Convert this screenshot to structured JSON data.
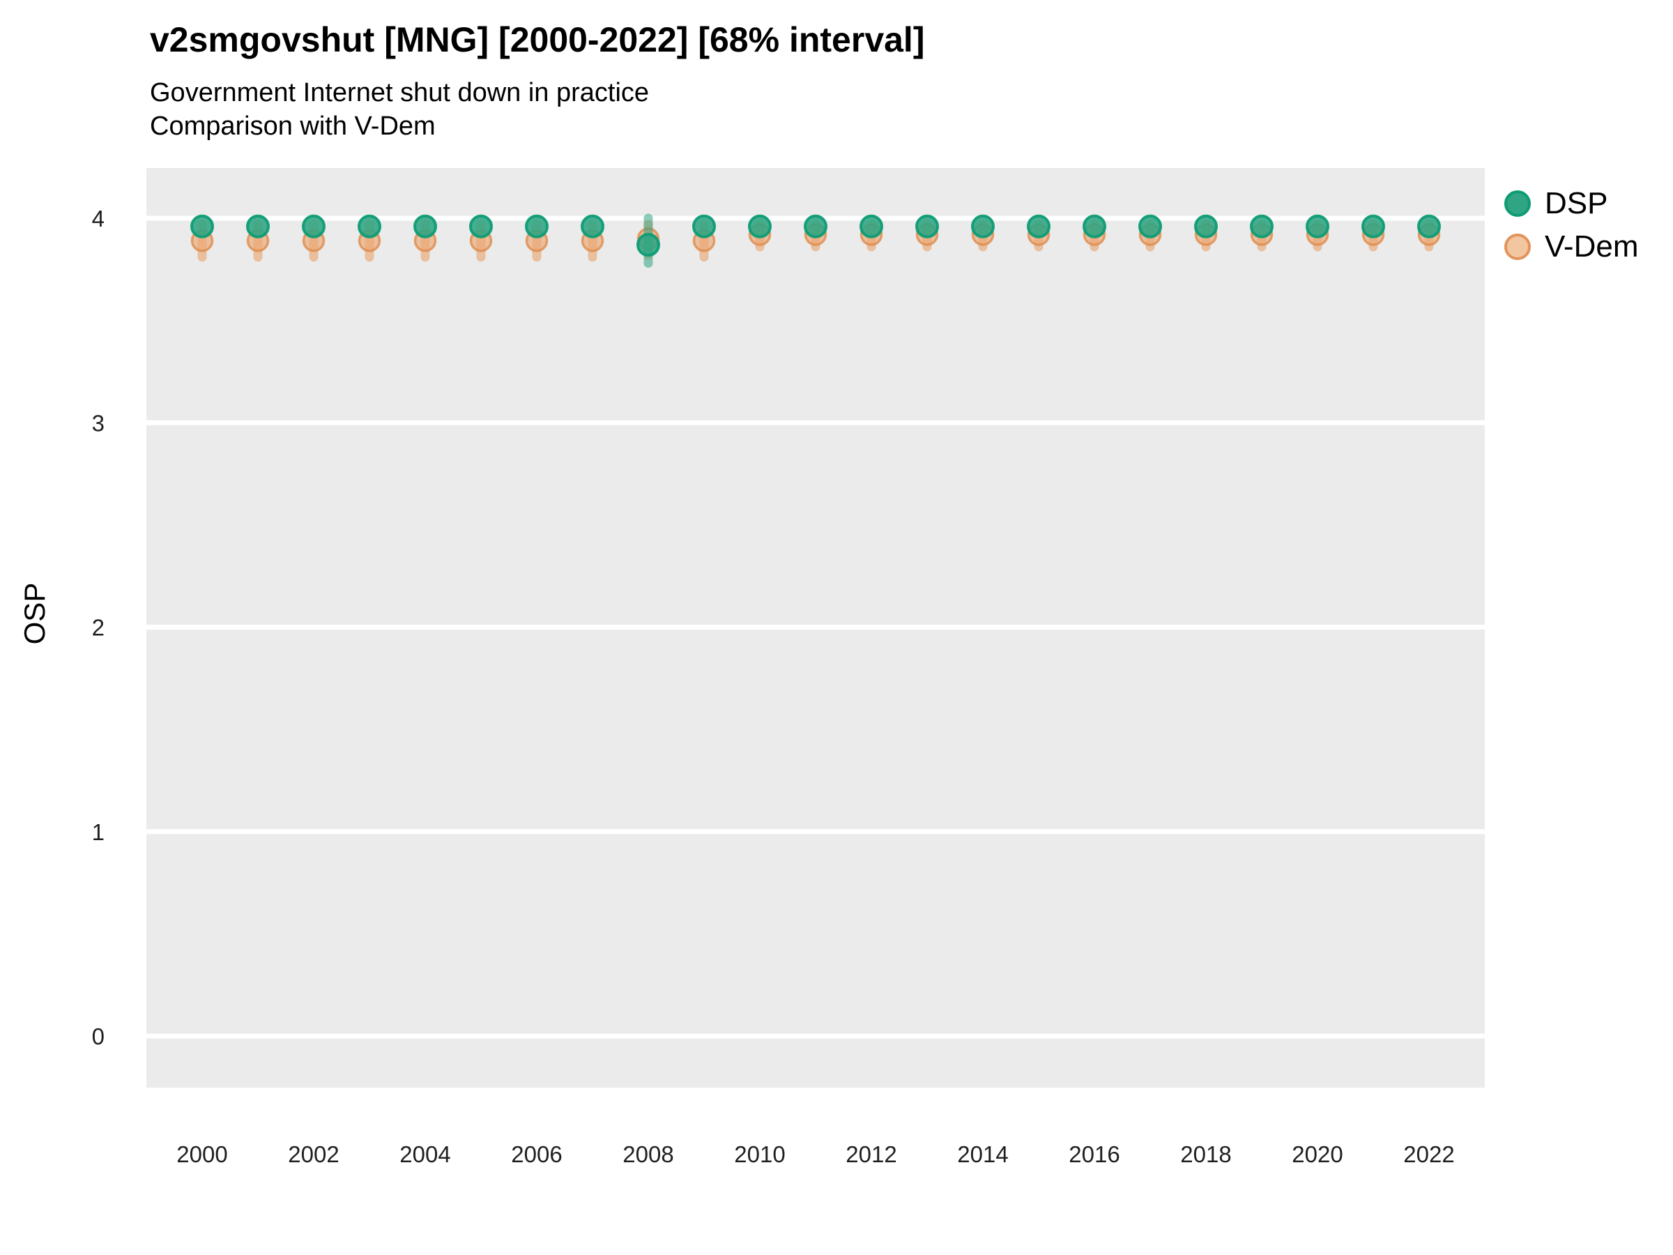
{
  "title": "v2smgovshut [MNG] [2000-2022] [68% interval]",
  "subtitle_line1": "Government Internet shut down in practice",
  "subtitle_line2": "Comparison with V-Dem",
  "y_axis_title": "OSP",
  "colors": {
    "panel_background": "#EBEBEB",
    "gridline": "#FFFFFF",
    "tick_label": "#1F1F1F",
    "dsp_fill": "#2EA583",
    "dsp_stroke": "#0E9C75",
    "vdem_fill": "#ECA46F",
    "vdem_stroke": "#DF8C4D"
  },
  "legend": {
    "items": [
      {
        "label": "DSP",
        "fill": "#2FA584",
        "stroke": "#0F9B74"
      },
      {
        "label": "V-Dem",
        "fill": "#F3C6A2",
        "stroke": "#E2945A"
      }
    ]
  },
  "chart_data": {
    "type": "scatter",
    "title": "v2smgovshut [MNG] [2000-2022] [68% interval]",
    "subtitle": [
      "Government Internet shut down in practice",
      "Comparison with V-Dem"
    ],
    "xlabel": "",
    "ylabel": "OSP",
    "x": [
      2000,
      2001,
      2002,
      2003,
      2004,
      2005,
      2006,
      2007,
      2008,
      2009,
      2010,
      2011,
      2012,
      2013,
      2014,
      2015,
      2016,
      2017,
      2018,
      2019,
      2020,
      2021,
      2022
    ],
    "xticks": [
      2000,
      2002,
      2004,
      2006,
      2008,
      2010,
      2012,
      2014,
      2016,
      2018,
      2020,
      2022
    ],
    "yticks": [
      0,
      1,
      2,
      3,
      4
    ],
    "xlim": [
      1999,
      2023
    ],
    "ylim": [
      -0.25,
      4.25
    ],
    "grid": "horizontal-major-white-on-gray",
    "legend_position": "right",
    "interval_note": "68% interval",
    "series": [
      {
        "name": "DSP",
        "marker_fill": "#2EA583",
        "marker_stroke": "#0E9C75",
        "bar_color": "#2EA583",
        "values": [
          3.96,
          3.96,
          3.96,
          3.96,
          3.96,
          3.96,
          3.96,
          3.96,
          3.87,
          3.96,
          3.96,
          3.96,
          3.96,
          3.96,
          3.96,
          3.96,
          3.96,
          3.96,
          3.96,
          3.96,
          3.96,
          3.96,
          3.96
        ],
        "lo": [
          null,
          null,
          null,
          null,
          null,
          null,
          null,
          null,
          3.78,
          null,
          null,
          null,
          null,
          null,
          null,
          null,
          null,
          null,
          null,
          null,
          null,
          null,
          null
        ],
        "hi": [
          null,
          null,
          null,
          null,
          null,
          null,
          null,
          null,
          4.0,
          null,
          null,
          null,
          null,
          null,
          null,
          null,
          null,
          null,
          null,
          null,
          null,
          null,
          null
        ]
      },
      {
        "name": "V-Dem",
        "marker_fill": "#ECA46F",
        "marker_stroke": "#DF8C4D",
        "bar_color": "#E89B5F",
        "values": [
          3.89,
          3.89,
          3.89,
          3.89,
          3.89,
          3.89,
          3.89,
          3.89,
          3.9,
          3.89,
          3.92,
          3.92,
          3.92,
          3.92,
          3.92,
          3.92,
          3.92,
          3.92,
          3.92,
          3.92,
          3.92,
          3.92,
          3.92
        ],
        "lo": [
          3.81,
          3.81,
          3.81,
          3.81,
          3.81,
          3.81,
          3.81,
          3.81,
          3.82,
          3.81,
          3.86,
          3.86,
          3.86,
          3.86,
          3.86,
          3.86,
          3.86,
          3.86,
          3.86,
          3.86,
          3.86,
          3.86,
          3.86
        ],
        "hi": [
          3.97,
          3.97,
          3.97,
          3.97,
          3.97,
          3.97,
          3.97,
          3.97,
          3.97,
          3.97,
          3.97,
          3.97,
          3.97,
          3.97,
          3.97,
          3.97,
          3.97,
          3.97,
          3.97,
          3.97,
          3.97,
          3.97,
          3.97
        ]
      }
    ]
  }
}
